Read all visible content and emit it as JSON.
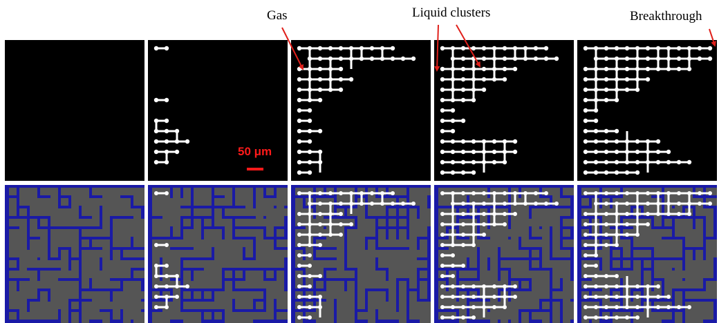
{
  "annotations": {
    "gas": "Gas",
    "liquid_clusters": "Liquid clusters",
    "breakthrough": "Breakthrough"
  },
  "scale_bar": {
    "label": "50 μm"
  },
  "colors": {
    "background": "#000000",
    "gas_network": "#ffffff",
    "solid_grains": "#555555",
    "liquid_channels": "#1a1aa6",
    "annotation_arrows": "#e0201b",
    "scale_bar": "#ff1a1a"
  },
  "panels": {
    "top_row": [
      "stage-1-binary",
      "stage-2-binary",
      "stage-3-binary",
      "stage-4-binary",
      "stage-5-binary"
    ],
    "bottom_row": [
      "stage-1-network",
      "stage-2-network",
      "stage-3-network",
      "stage-4-network",
      "stage-5-network"
    ]
  }
}
